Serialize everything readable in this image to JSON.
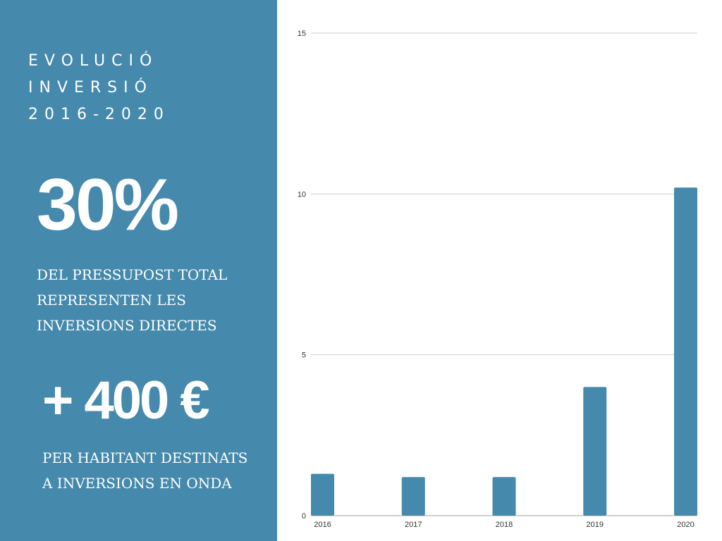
{
  "panel": {
    "title_lines": [
      "EVOLUCIÓ",
      "INVERSIÓ",
      "2016-2020"
    ],
    "stat1_value": "30%",
    "stat1_lines": [
      "DEL PRESSUPOST TOTAL",
      "REPRESENTEN LES",
      "INVERSIONS DIRECTES"
    ],
    "stat2_value": "+ 400 €",
    "stat2_lines": [
      "PER HABITANT DESTINATS",
      "A INVERSIONS EN ONDA"
    ],
    "background_color": "#4589ac"
  },
  "chart_data": {
    "type": "bar",
    "title": "",
    "xlabel": "",
    "ylabel": "",
    "categories": [
      "2016",
      "2017",
      "2018",
      "2019",
      "2020"
    ],
    "values": [
      1.3,
      1.2,
      1.2,
      4.0,
      10.2
    ],
    "ylim": [
      0,
      15
    ],
    "yticks": [
      0,
      5,
      10,
      15
    ],
    "grid": true,
    "bar_color": "#4589ac"
  }
}
